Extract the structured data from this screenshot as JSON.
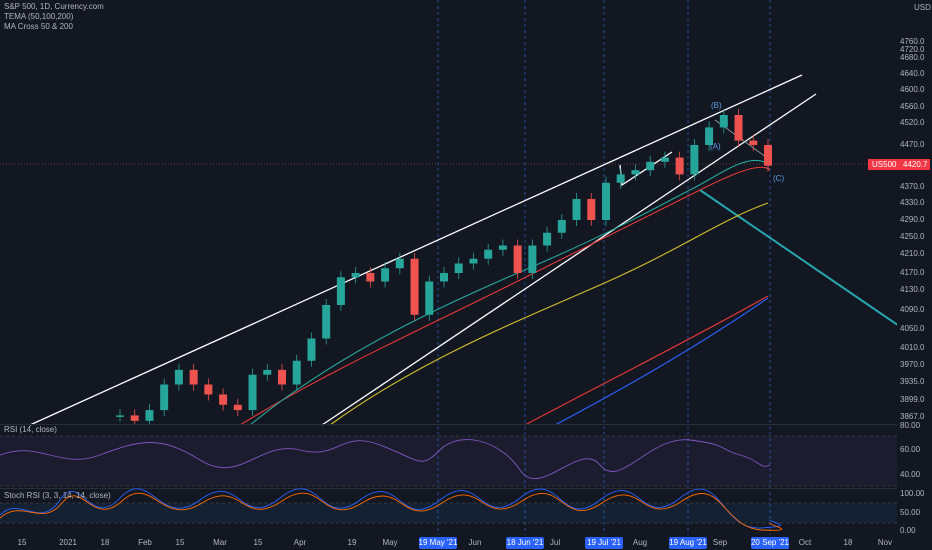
{
  "header": {
    "symbol": "S&P 500, 1D, Currency.com",
    "indicator_1": "TEMA (50,100,200)",
    "indicator_2": "MA Cross 50 & 200",
    "currency": "USD"
  },
  "price_axis": {
    "ticks": [
      "4760.0",
      "4720.0",
      "4680.0",
      "4640.0",
      "4600.0",
      "4560.0",
      "4520.0",
      "4470.0",
      "4370.0",
      "4330.0",
      "4290.0",
      "4250.0",
      "4210.0",
      "4170.0",
      "4130.0",
      "4090.0",
      "4050.0",
      "4010.0",
      "3970.0",
      "3935.0",
      "3899.0",
      "3867.0"
    ],
    "tag_symbol": "US500",
    "tag_price": "4420.7"
  },
  "waves": {
    "a": "(A)",
    "b": "(B)",
    "c": "(C)"
  },
  "closes": [
    3870,
    3860,
    3880,
    3930,
    3960,
    3930,
    3910,
    3890,
    3880,
    3950,
    3960,
    3930,
    3980,
    4030,
    4100,
    4160,
    4170,
    4150,
    4180,
    4200,
    4080,
    4150,
    4170,
    4190,
    4200,
    4220,
    4230,
    4170,
    4230,
    4260,
    4290,
    4340,
    4290,
    4380,
    4400,
    4410,
    4430,
    4440,
    4400,
    4470,
    4510,
    4540,
    4480,
    4470,
    4420.7
  ],
  "rsi": {
    "title": "RSI (14, close)",
    "ticks": [
      "80.00",
      "60.00",
      "40.00"
    ]
  },
  "stoch": {
    "title": "Stoch RSI (3, 3, 14, 14, close)",
    "ticks": [
      "100.00",
      "50.00",
      "0.00"
    ]
  },
  "time_axis": [
    "15",
    "2021",
    "18",
    "Feb",
    "15",
    "Mar",
    "15",
    "Apr",
    "19",
    "May",
    "19 May '21",
    "Jun",
    "18 Jun '21",
    "Jul",
    "19 Jul '21",
    "Aug",
    "19 Aug '21",
    "Sep",
    "20 Sep '21",
    "Oct",
    "18",
    "Nov"
  ]
}
